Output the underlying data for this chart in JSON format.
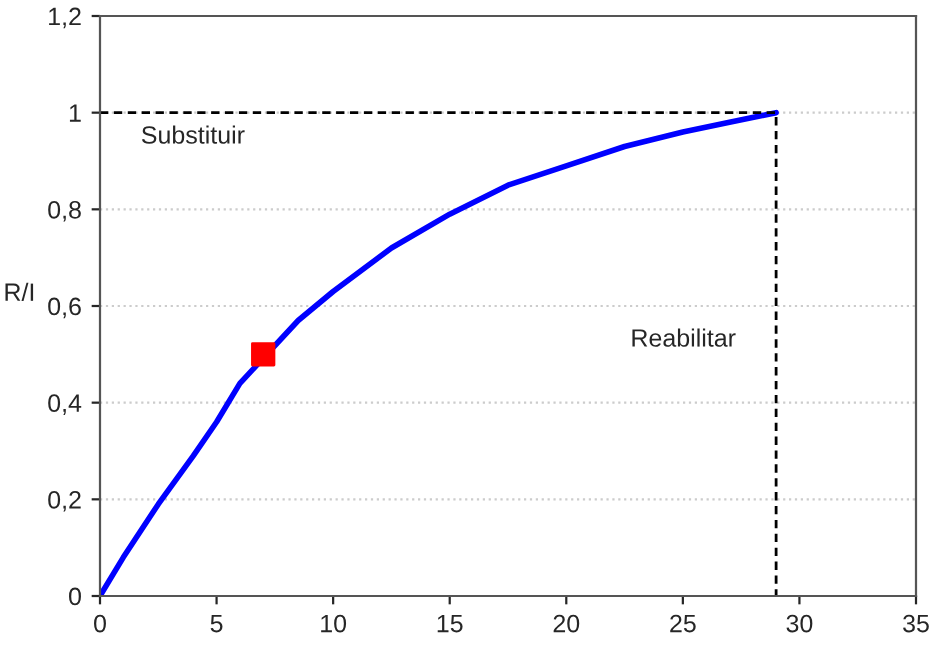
{
  "chart_data": {
    "type": "line",
    "ylabel": "R/I",
    "xlim": [
      0,
      35
    ],
    "xticks": [
      0,
      5,
      10,
      15,
      20,
      25,
      30,
      35
    ],
    "ylim": [
      0,
      1.2
    ],
    "yticks": [
      0,
      {
        "value": 0.2,
        "label": "0,2"
      },
      {
        "value": 0.4,
        "label": "0,4"
      },
      {
        "value": 0.6,
        "label": "0,6"
      },
      {
        "value": 0.8,
        "label": "0,8"
      },
      1,
      {
        "value": 1.2,
        "label": "1,2"
      }
    ],
    "grid": "y",
    "legend": false,
    "annotations": [
      "Substituir",
      "Reabilitar"
    ],
    "series": [
      {
        "color": "#0000ff",
        "x": [
          0,
          1,
          2.5,
          4,
          5,
          6,
          8.5,
          10,
          12.5,
          15,
          17.5,
          20,
          22.5,
          25,
          27,
          29
        ],
        "values": [
          0,
          0.08,
          0.19,
          0.29,
          0.36,
          0.44,
          0.57,
          0.63,
          0.72,
          0.79,
          0.85,
          0.89,
          0.93,
          0.96,
          0.98,
          1
        ],
        "marker": "none",
        "line_style": "solid"
      },
      {
        "type": "scatter",
        "color": "#ff0000",
        "x": [
          7
        ],
        "values": [
          0.5
        ],
        "marker": "square"
      },
      {
        "color": "#000000",
        "x": [
          0,
          29,
          29
        ],
        "values": [
          1,
          1,
          0
        ],
        "marker": "none",
        "line_style": "dashed"
      }
    ]
  }
}
